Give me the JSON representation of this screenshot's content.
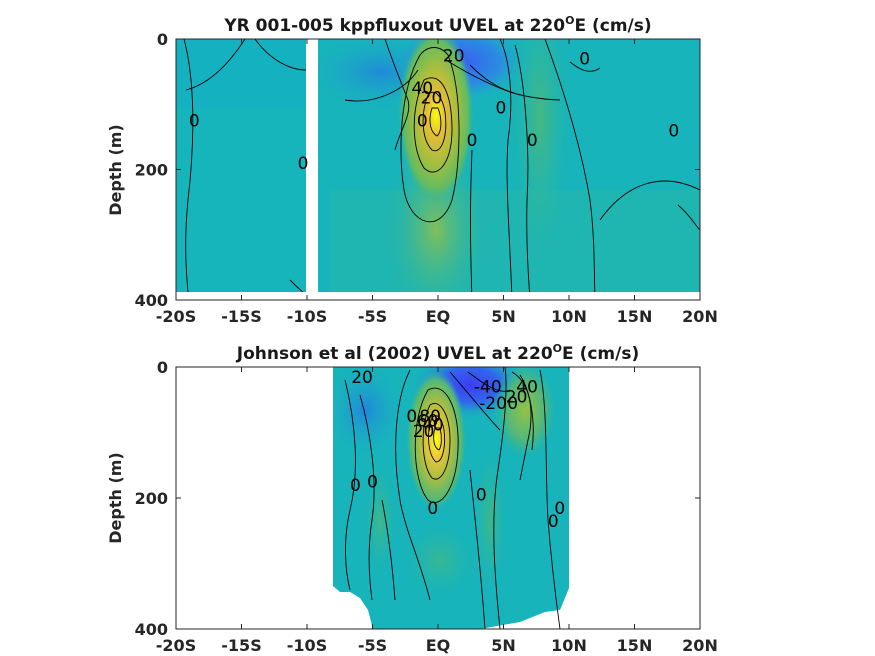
{
  "chart_data": [
    {
      "type": "heatmap",
      "title": "YR 001-005 kppfluxout UVEL at 220",
      "title_sup": "O",
      "title_tail": "E (cm/s)",
      "xlabel": "",
      "ylabel": "Depth (m)",
      "x_ticks": [
        "-20S",
        "-15S",
        "-10S",
        "-5S",
        "EQ",
        "5N",
        "10N",
        "15N",
        "20N"
      ],
      "x_tick_values": [
        -20,
        -15,
        -10,
        -5,
        0,
        5,
        10,
        15,
        20
      ],
      "y_ticks": [
        "0",
        "200",
        "400"
      ],
      "y_tick_values": [
        0,
        200,
        400
      ],
      "xlim": [
        -20,
        20
      ],
      "ylim": [
        400,
        0
      ],
      "data_extent": {
        "lat": [
          -20,
          20
        ],
        "depth": [
          0,
          385
        ]
      },
      "missing_lat_band": [
        -9.9,
        -8.9
      ],
      "colormap": "parula",
      "features": {
        "undercurrent_core": {
          "lat": 0,
          "depth": 100,
          "speed": 100
        },
        "westward_surface": {
          "lat": 1.5,
          "depth": 10,
          "speed": -50
        }
      },
      "contour_labels": [
        {
          "text": "20",
          "lat": 1.2,
          "depth": 25
        },
        {
          "text": "0",
          "lat": 11.2,
          "depth": 30
        },
        {
          "text": "40",
          "lat": -1.2,
          "depth": 75
        },
        {
          "text": "20",
          "lat": -0.5,
          "depth": 90
        },
        {
          "text": "0",
          "lat": 4.8,
          "depth": 105
        },
        {
          "text": "0",
          "lat": -1.2,
          "depth": 125
        },
        {
          "text": "0",
          "lat": -18.6,
          "depth": 125
        },
        {
          "text": "0",
          "lat": 18.0,
          "depth": 140
        },
        {
          "text": "0",
          "lat": 2.6,
          "depth": 155
        },
        {
          "text": "0",
          "lat": 7.2,
          "depth": 155
        },
        {
          "text": "0",
          "lat": -10.3,
          "depth": 190
        }
      ]
    },
    {
      "type": "heatmap",
      "title": "Johnson et al (2002) UVEL at 220",
      "title_sup": "O",
      "title_tail": "E (cm/s)",
      "xlabel": "",
      "ylabel": "Depth (m)",
      "x_ticks": [
        "-20S",
        "-15S",
        "-10S",
        "-5S",
        "EQ",
        "5N",
        "10N",
        "15N",
        "20N"
      ],
      "x_tick_values": [
        -20,
        -15,
        -10,
        -5,
        0,
        5,
        10,
        15,
        20
      ],
      "y_ticks": [
        "0",
        "200",
        "400"
      ],
      "y_tick_values": [
        0,
        200,
        400
      ],
      "xlim": [
        -20,
        20
      ],
      "ylim": [
        400,
        0
      ],
      "data_extent": {
        "lat": [
          -8,
          10
        ],
        "depth": [
          0,
          400
        ]
      },
      "colormap": "parula",
      "features": {
        "undercurrent_core": {
          "lat": 0,
          "depth": 110,
          "speed": 100
        },
        "westward_surface": {
          "lat": 2.5,
          "depth": 5,
          "speed": -60
        },
        "ncc": {
          "lat": 6.5,
          "depth": 30,
          "speed": 40
        }
      },
      "contour_labels": [
        {
          "text": "20",
          "lat": -5.8,
          "depth": 15
        },
        {
          "text": "40",
          "lat": 6.8,
          "depth": 30
        },
        {
          "text": "-40",
          "lat": 3.8,
          "depth": 30
        },
        {
          "text": "20",
          "lat": 6.0,
          "depth": 45
        },
        {
          "text": "-20",
          "lat": 4.2,
          "depth": 55
        },
        {
          "text": "0",
          "lat": 5.7,
          "depth": 55
        },
        {
          "text": "0",
          "lat": -2.0,
          "depth": 75
        },
        {
          "text": "80",
          "lat": -0.6,
          "depth": 75
        },
        {
          "text": "60",
          "lat": -0.8,
          "depth": 82
        },
        {
          "text": "40",
          "lat": -0.4,
          "depth": 88
        },
        {
          "text": "20",
          "lat": -1.1,
          "depth": 98
        },
        {
          "text": "0",
          "lat": -6.3,
          "depth": 180
        },
        {
          "text": "0",
          "lat": -5.0,
          "depth": 175
        },
        {
          "text": "0",
          "lat": 3.3,
          "depth": 195
        },
        {
          "text": "0",
          "lat": 9.3,
          "depth": 215
        },
        {
          "text": "0",
          "lat": -0.4,
          "depth": 215
        },
        {
          "text": "0",
          "lat": 8.8,
          "depth": 235
        }
      ]
    }
  ]
}
